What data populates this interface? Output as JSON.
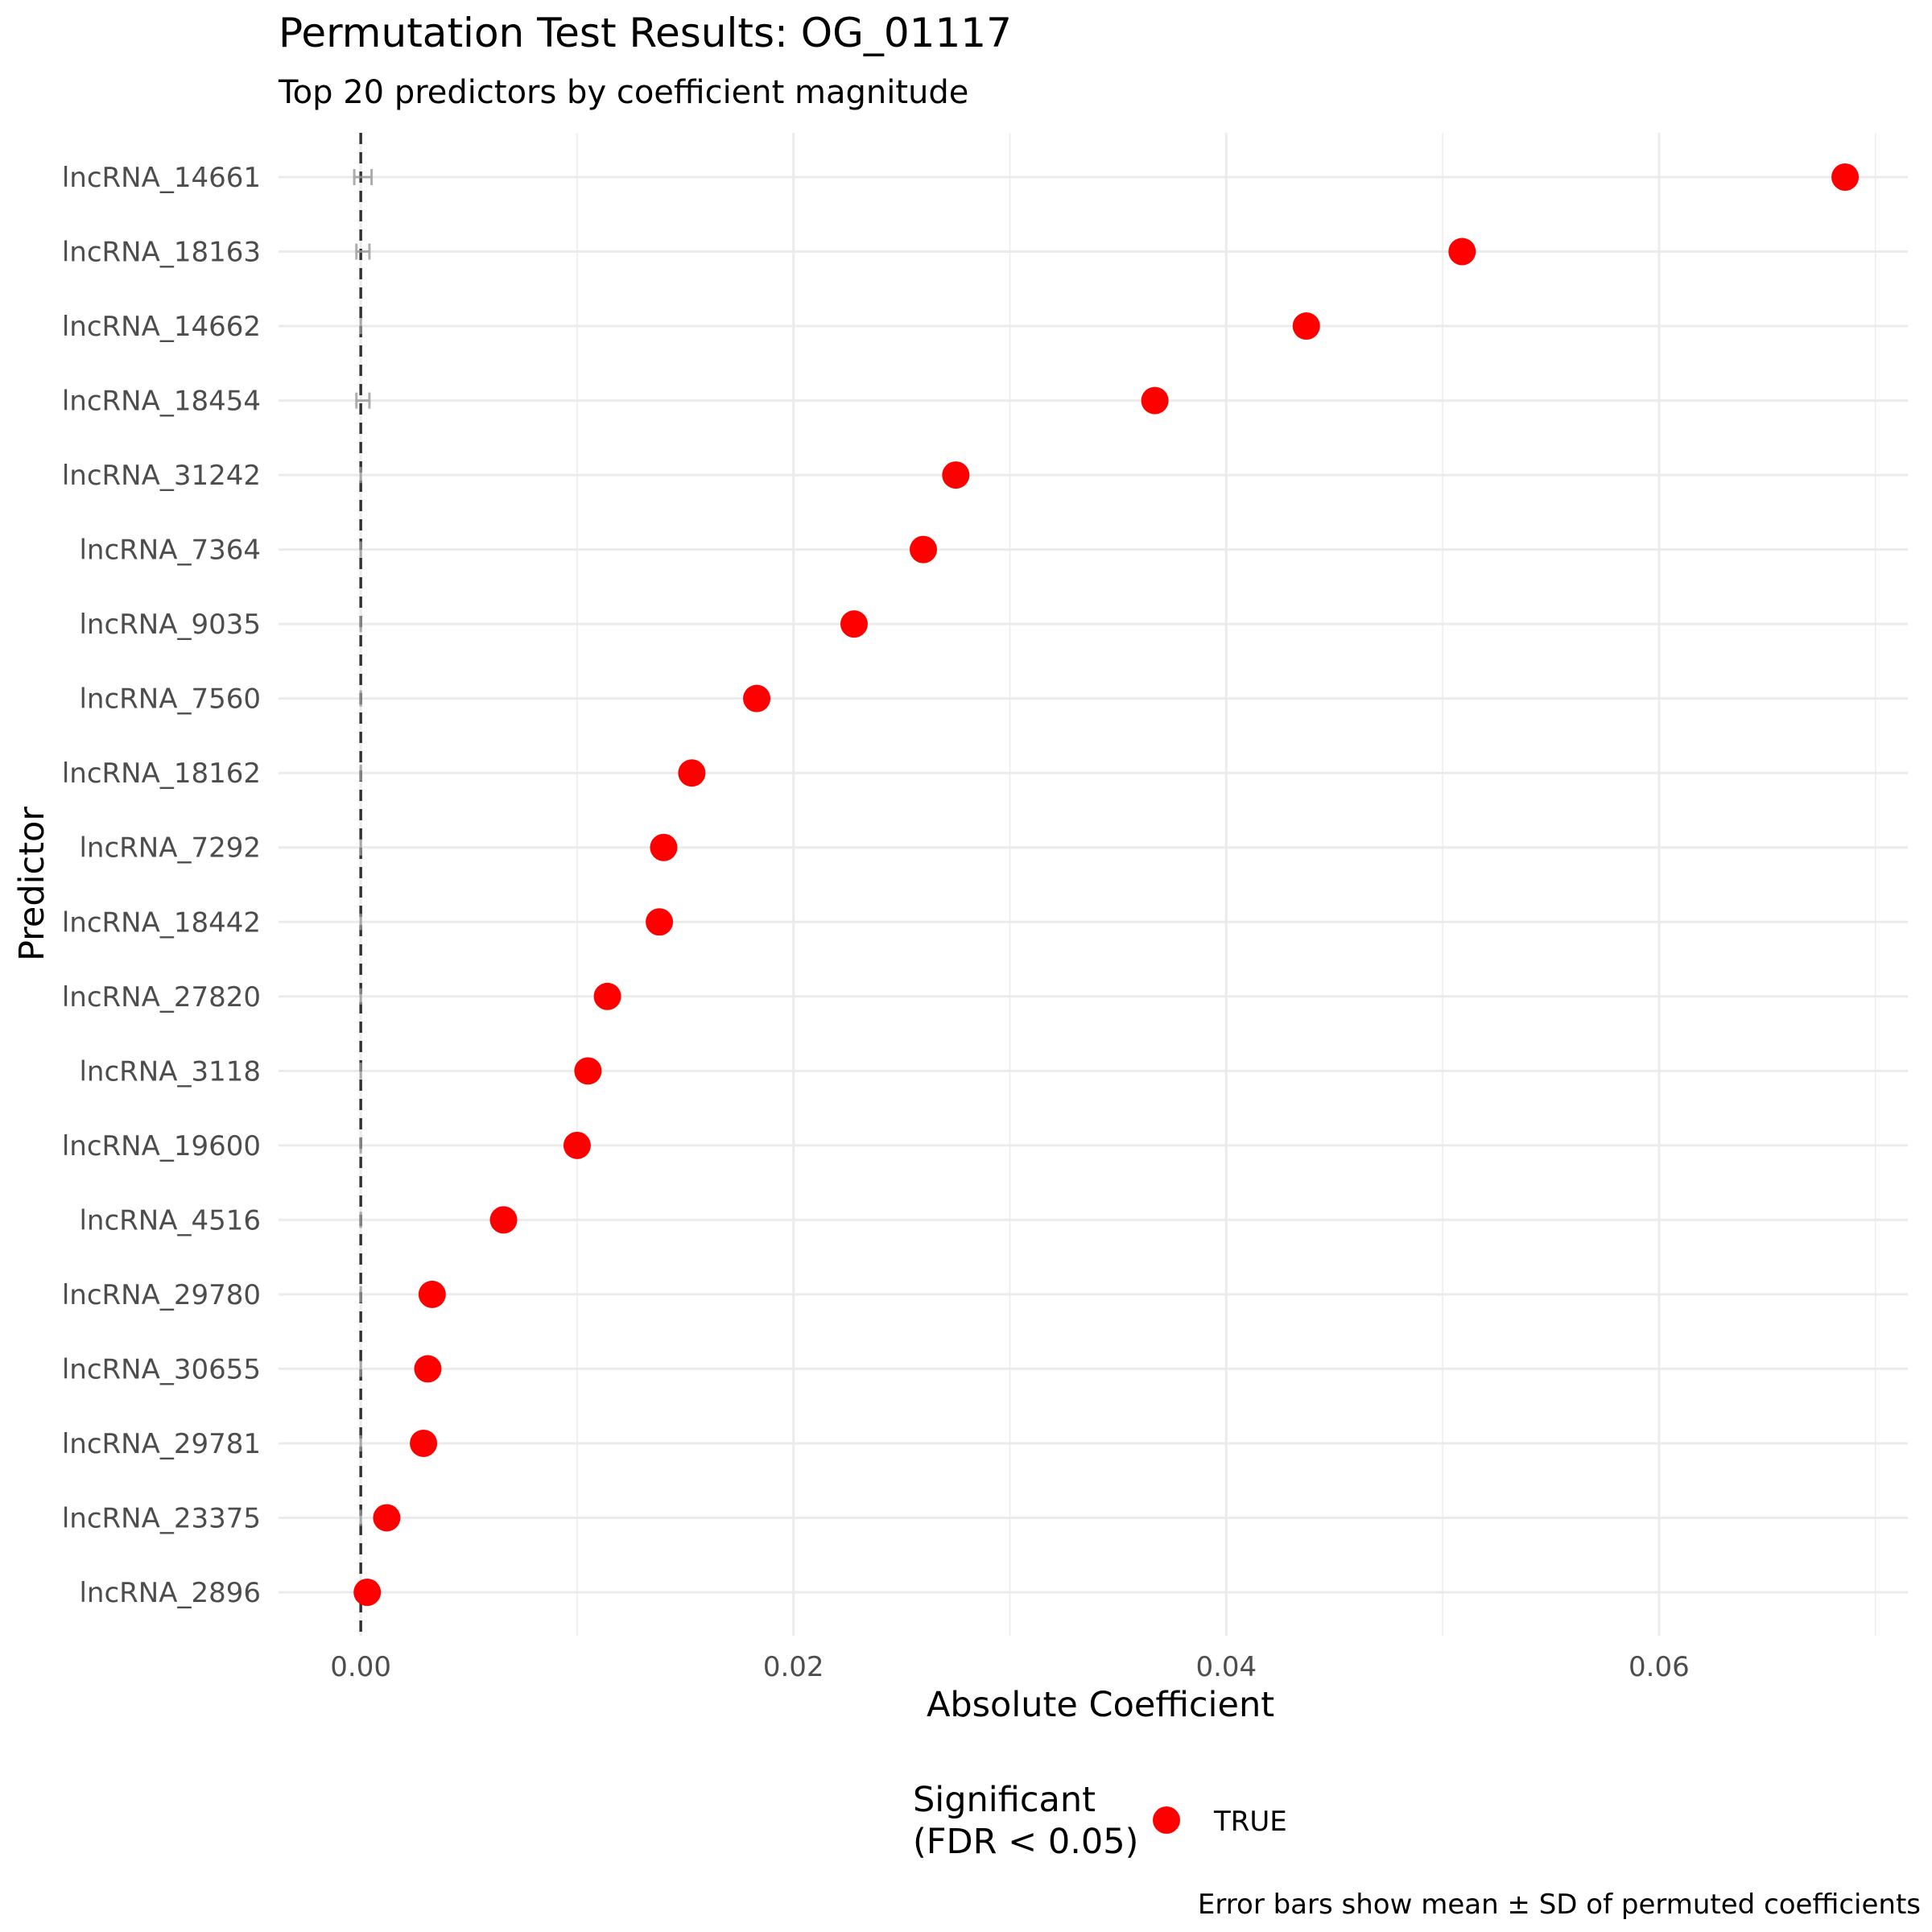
{
  "chart_data": {
    "type": "scatter",
    "title": "Permutation Test Results: OG_01117",
    "subtitle": "Top 20 predictors by coefficient magnitude",
    "xlabel": "Absolute Coefficient",
    "ylabel": "Predictor",
    "xlim": [
      -0.0038,
      0.0715
    ],
    "x_ticks": [
      0.0,
      0.02,
      0.04,
      0.06
    ],
    "x_tick_labels": [
      "0.00",
      "0.02",
      "0.04",
      "0.06"
    ],
    "grid": true,
    "reference_line": {
      "x": 0,
      "style": "dashed"
    },
    "categories": [
      "lncRNA_14661",
      "lncRNA_18163",
      "lncRNA_14662",
      "lncRNA_18454",
      "lncRNA_31242",
      "lncRNA_7364",
      "lncRNA_9035",
      "lncRNA_7560",
      "lncRNA_18162",
      "lncRNA_7292",
      "lncRNA_18442",
      "lncRNA_27820",
      "lncRNA_3118",
      "lncRNA_19600",
      "lncRNA_4516",
      "lncRNA_29780",
      "lncRNA_30655",
      "lncRNA_29781",
      "lncRNA_23375",
      "lncRNA_2896"
    ],
    "values": [
      0.0686,
      0.0509,
      0.0437,
      0.0367,
      0.0275,
      0.026,
      0.0228,
      0.0183,
      0.0153,
      0.014,
      0.0138,
      0.0114,
      0.0105,
      0.01,
      0.0066,
      0.0033,
      0.0031,
      0.0029,
      0.0012,
      0.0003
    ],
    "permuted_mean": [
      0.0001,
      0.0001,
      0.0,
      0.0001,
      0,
      0,
      0,
      0,
      0,
      0,
      0,
      0,
      0,
      0,
      0,
      0,
      0,
      0,
      0,
      0
    ],
    "permuted_sd": [
      0.0004,
      0.0003,
      0.0,
      0.0003,
      0,
      0,
      0,
      0,
      0,
      0,
      0,
      0,
      0,
      0,
      0,
      0,
      0,
      0,
      0,
      0
    ],
    "significant": [
      true,
      true,
      true,
      true,
      true,
      true,
      true,
      true,
      true,
      true,
      true,
      true,
      true,
      true,
      true,
      true,
      true,
      true,
      true,
      true
    ],
    "legend": {
      "title_line1": "Significant",
      "title_line2": "(FDR < 0.05)",
      "placement": "bottom",
      "entries": [
        {
          "label": "TRUE",
          "color": "#FF0000"
        }
      ]
    },
    "caption": "Error bars show mean ± SD of permuted coefficients"
  },
  "colors": {
    "point": "#FF0000",
    "errorbar": "#999999",
    "grid": "#EBEBEB",
    "refline": "#333333"
  }
}
